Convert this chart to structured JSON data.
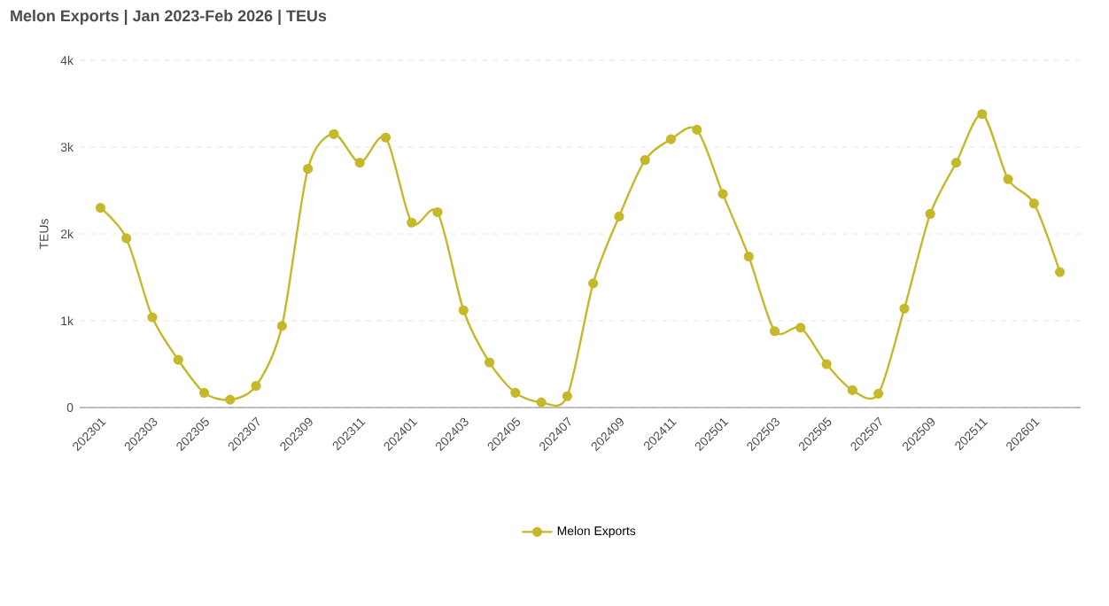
{
  "chart_data": {
    "type": "line",
    "title": "Melon Exports | Jan 2023-Feb 2026 | TEUs",
    "ylabel": "TEUs",
    "categories": [
      "202301",
      null,
      "202303",
      null,
      "202305",
      null,
      "202307",
      null,
      "202309",
      null,
      "202311",
      null,
      "202401",
      null,
      "202403",
      null,
      "202405",
      null,
      "202407",
      null,
      "202409",
      null,
      "202411",
      null,
      "202501",
      null,
      "202503",
      null,
      "202505",
      null,
      "202507",
      null,
      "202509",
      null,
      "202511",
      null,
      "202601",
      null
    ],
    "series": [
      {
        "name": "Melon Exports",
        "color": "#c5b82a",
        "values": [
          2300,
          1950,
          1040,
          550,
          170,
          90,
          250,
          940,
          2750,
          3150,
          2820,
          3110,
          2130,
          2250,
          1120,
          520,
          170,
          60,
          130,
          1430,
          2200,
          2850,
          3090,
          3200,
          2460,
          1740,
          880,
          920,
          500,
          200,
          160,
          1140,
          2230,
          2820,
          3380,
          2630,
          2350,
          1560
        ]
      }
    ],
    "ylim": [
      0,
      4000
    ],
    "yticks": [
      {
        "value": 0,
        "label": "0"
      },
      {
        "value": 1000,
        "label": "1k"
      },
      {
        "value": 2000,
        "label": "2k"
      },
      {
        "value": 3000,
        "label": "3k"
      },
      {
        "value": 4000,
        "label": "4k"
      }
    ],
    "grid": "y",
    "legend": "bottom",
    "marker": "circle",
    "line_style": "solid"
  }
}
